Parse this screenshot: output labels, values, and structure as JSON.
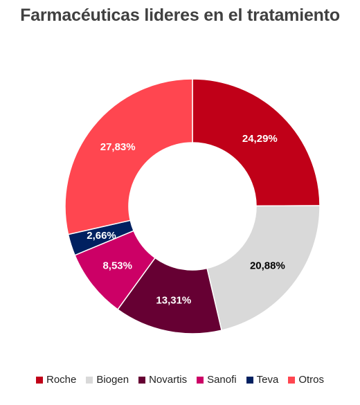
{
  "chart_data": {
    "type": "pie",
    "title": "Farmacéuticas lideres en el tratamiento",
    "categories": [
      "Roche",
      "Biogen",
      "Novartis",
      "Sanofi",
      "Teva",
      "Otros"
    ],
    "values": [
      24.29,
      20.88,
      13.31,
      8.53,
      2.66,
      27.83
    ],
    "labels": [
      "24,29%",
      "20,88%",
      "13,31%",
      "8,53%",
      "2,66%",
      "27,83%"
    ],
    "colors": [
      "#c00018",
      "#d9d9d9",
      "#660033",
      "#cc0066",
      "#002060",
      "#ff4650"
    ],
    "label_colors": [
      "#ffffff",
      "#000000",
      "#ffffff",
      "#ffffff",
      "#ffffff",
      "#ffffff"
    ],
    "legend_position": "bottom",
    "donut": true
  }
}
